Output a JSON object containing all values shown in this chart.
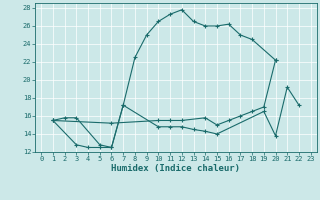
{
  "xlabel": "Humidex (Indice chaleur)",
  "xlim": [
    -0.5,
    23.5
  ],
  "ylim": [
    12,
    28.5
  ],
  "xticks": [
    0,
    1,
    2,
    3,
    4,
    5,
    6,
    7,
    8,
    9,
    10,
    11,
    12,
    13,
    14,
    15,
    16,
    17,
    18,
    19,
    20,
    21,
    22,
    23
  ],
  "yticks": [
    12,
    14,
    16,
    18,
    20,
    22,
    24,
    26,
    28
  ],
  "bg_color": "#cce8e8",
  "grid_color": "#aed0d0",
  "line_color": "#1a6b6b",
  "series": [
    {
      "x": [
        1,
        2,
        3,
        5,
        6,
        7,
        8,
        9,
        10,
        11,
        12,
        13,
        14,
        15,
        16,
        17,
        18,
        20
      ],
      "y": [
        15.5,
        15.8,
        15.8,
        12.8,
        12.5,
        17.2,
        22.5,
        25.0,
        26.5,
        27.3,
        27.8,
        26.5,
        26.0,
        26.0,
        26.2,
        25.0,
        24.5,
        22.2
      ]
    },
    {
      "x": [
        1,
        6,
        10,
        11,
        12,
        14,
        15,
        16,
        17,
        18,
        19,
        20
      ],
      "y": [
        15.5,
        15.2,
        15.5,
        15.5,
        15.5,
        15.8,
        15.0,
        15.5,
        16.0,
        16.5,
        17.0,
        22.2
      ]
    },
    {
      "x": [
        1,
        3,
        4,
        5,
        6,
        7,
        10,
        11,
        12,
        13,
        14,
        15,
        19,
        20,
        21,
        22
      ],
      "y": [
        15.5,
        12.8,
        12.5,
        12.5,
        12.5,
        17.2,
        14.8,
        14.8,
        14.8,
        14.5,
        14.3,
        14.0,
        16.5,
        13.8,
        19.2,
        17.2
      ]
    }
  ]
}
